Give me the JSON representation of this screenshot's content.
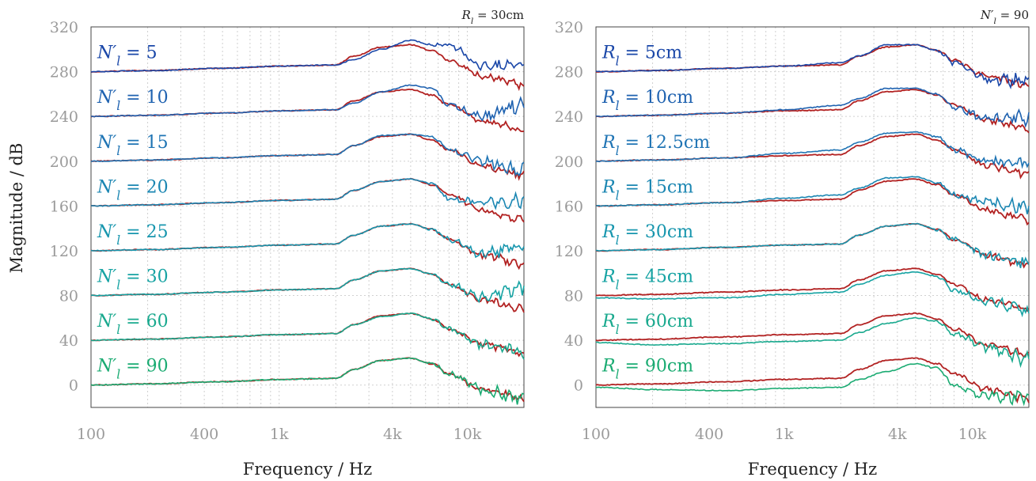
{
  "figure": {
    "ylabel": "Magnitude / dB",
    "colors": {
      "measured": "#b22222"
    }
  },
  "chart_data": [
    {
      "type": "line",
      "corner_label": "R_l = 30cm",
      "xlabel": "Frequency / Hz",
      "ylabel": "Magnitude / dB",
      "xscale": "log",
      "xlim": [
        100,
        20000
      ],
      "ylim": [
        -20,
        320
      ],
      "xticks": [
        100,
        400,
        1000,
        4000,
        10000
      ],
      "xticklabels": [
        "100",
        "400",
        "1k",
        "4k",
        "10k"
      ],
      "yticks": [
        0,
        40,
        80,
        120,
        160,
        200,
        240,
        280,
        320
      ],
      "grid": true,
      "curve_points_hz": [
        100,
        200,
        500,
        1000,
        2000,
        2500,
        3500,
        5000,
        6500,
        8000,
        12000,
        20000
      ],
      "series": [
        {
          "name": "N'_l = 5",
          "color": "#1a47a8",
          "offset": 280,
          "measured": [
            0,
            1,
            3,
            5,
            6,
            14,
            22,
            24,
            19,
            10,
            -4,
            -12
          ],
          "simulated": [
            0,
            1,
            3,
            5,
            6,
            11,
            20,
            28,
            24,
            24,
            5,
            5
          ]
        },
        {
          "name": "N'_l = 10",
          "color": "#1f62b0",
          "offset": 240,
          "measured": [
            0,
            1,
            3,
            5,
            6,
            14,
            22,
            24,
            19,
            10,
            -4,
            -12
          ],
          "simulated": [
            0,
            1,
            3,
            5,
            6,
            12,
            22,
            28,
            25,
            10,
            0,
            10
          ]
        },
        {
          "name": "N'_l = 15",
          "color": "#1f74b4",
          "offset": 200,
          "measured": [
            0,
            1,
            3,
            5,
            6,
            14,
            22,
            24,
            19,
            10,
            -4,
            -12
          ],
          "simulated": [
            0,
            1,
            3,
            5,
            6,
            14,
            23,
            24,
            22,
            10,
            0,
            -8
          ]
        },
        {
          "name": "N'_l = 20",
          "color": "#1a86b2",
          "offset": 160,
          "measured": [
            0,
            1,
            3,
            5,
            6,
            14,
            22,
            24,
            19,
            10,
            -4,
            -12
          ],
          "simulated": [
            0,
            1,
            3,
            5,
            6,
            14,
            22,
            24,
            20,
            6,
            3,
            5
          ]
        },
        {
          "name": "N'_l = 25",
          "color": "#1796ae",
          "offset": 120,
          "measured": [
            0,
            1,
            3,
            5,
            6,
            14,
            22,
            24,
            19,
            10,
            -4,
            -12
          ],
          "simulated": [
            0,
            1,
            3,
            5,
            6,
            14,
            22,
            24,
            19,
            10,
            -2,
            5
          ]
        },
        {
          "name": "N'_l = 30",
          "color": "#16a3a3",
          "offset": 80,
          "measured": [
            0,
            1,
            3,
            5,
            6,
            14,
            22,
            24,
            19,
            10,
            -4,
            -12
          ],
          "simulated": [
            0,
            1,
            3,
            5,
            6,
            14,
            22,
            24,
            19,
            10,
            -2,
            7
          ]
        },
        {
          "name": "N'_l = 60",
          "color": "#19a98e",
          "offset": 40,
          "measured": [
            0,
            1,
            3,
            5,
            6,
            14,
            22,
            24,
            19,
            10,
            -4,
            -12
          ],
          "simulated": [
            0,
            1,
            3,
            5,
            6,
            14,
            21,
            24,
            19,
            10,
            -4,
            -10
          ]
        },
        {
          "name": "N'_l = 90",
          "color": "#1aab72",
          "offset": 0,
          "measured": [
            0,
            1,
            3,
            5,
            6,
            14,
            22,
            24,
            19,
            10,
            -4,
            -12
          ],
          "simulated": [
            0,
            1,
            3,
            5,
            6,
            14,
            22,
            24,
            19,
            10,
            -4,
            -12
          ]
        }
      ]
    },
    {
      "type": "line",
      "corner_label": "N'_l = 90",
      "xlabel": "Frequency / Hz",
      "xscale": "log",
      "xlim": [
        100,
        20000
      ],
      "ylim": [
        -20,
        320
      ],
      "xticks": [
        100,
        400,
        1000,
        4000,
        10000
      ],
      "xticklabels": [
        "100",
        "400",
        "1k",
        "4k",
        "10k"
      ],
      "yticks": [
        0,
        40,
        80,
        120,
        160,
        200,
        240,
        280,
        320
      ],
      "grid": true,
      "curve_points_hz": [
        100,
        200,
        500,
        1000,
        2000,
        2500,
        3500,
        5000,
        6500,
        8000,
        12000,
        20000
      ],
      "series": [
        {
          "name": "R_l = 5cm",
          "color": "#1a47a8",
          "offset": 280,
          "measured": [
            0,
            1,
            3,
            5,
            6,
            14,
            22,
            24,
            19,
            10,
            -4,
            -12
          ],
          "simulated": [
            0,
            1,
            3,
            5,
            8,
            14,
            24,
            24,
            19,
            8,
            -6,
            -8
          ]
        },
        {
          "name": "R_l = 10cm",
          "color": "#1f62b0",
          "offset": 240,
          "measured": [
            0,
            1,
            3,
            5,
            6,
            14,
            22,
            24,
            19,
            10,
            -4,
            -12
          ],
          "simulated": [
            0,
            1,
            3,
            6,
            10,
            16,
            25,
            25,
            20,
            8,
            -2,
            -2
          ]
        },
        {
          "name": "R_l = 12.5cm",
          "color": "#1f74b4",
          "offset": 200,
          "measured": [
            0,
            1,
            3,
            5,
            6,
            14,
            22,
            24,
            19,
            10,
            -4,
            -12
          ],
          "simulated": [
            0,
            1,
            3,
            7,
            10,
            17,
            25,
            26,
            22,
            10,
            0,
            -2
          ]
        },
        {
          "name": "R_l = 15cm",
          "color": "#1a86b2",
          "offset": 160,
          "measured": [
            0,
            1,
            3,
            5,
            6,
            14,
            22,
            24,
            19,
            10,
            -4,
            -12
          ],
          "simulated": [
            0,
            1,
            3,
            7,
            10,
            16,
            25,
            26,
            21,
            10,
            3,
            0
          ]
        },
        {
          "name": "R_l = 30cm",
          "color": "#1796ae",
          "offset": 120,
          "measured": [
            0,
            1,
            3,
            5,
            6,
            14,
            22,
            24,
            19,
            10,
            -4,
            -12
          ],
          "simulated": [
            0,
            1,
            3,
            5,
            6,
            14,
            22,
            24,
            19,
            10,
            -4,
            -12
          ]
        },
        {
          "name": "R_l = 45cm",
          "color": "#16a3a3",
          "offset": 80,
          "measured": [
            0,
            1,
            3,
            5,
            6,
            14,
            22,
            24,
            19,
            10,
            -4,
            -12
          ],
          "simulated": [
            -2,
            -3,
            -2,
            1,
            3,
            10,
            18,
            21,
            17,
            5,
            -6,
            -14
          ]
        },
        {
          "name": "R_l = 60cm",
          "color": "#19a98e",
          "offset": 40,
          "measured": [
            0,
            1,
            3,
            5,
            6,
            14,
            22,
            24,
            19,
            10,
            -4,
            -12
          ],
          "simulated": [
            -2,
            -4,
            -3,
            -1,
            0,
            7,
            15,
            20,
            17,
            5,
            -6,
            -18
          ]
        },
        {
          "name": "R_l = 90cm",
          "color": "#1aab72",
          "offset": 0,
          "measured": [
            0,
            1,
            3,
            5,
            6,
            14,
            22,
            24,
            19,
            10,
            -4,
            -12
          ],
          "simulated": [
            -2,
            -4,
            -5,
            -3,
            -2,
            5,
            12,
            19,
            15,
            0,
            -10,
            -12
          ]
        }
      ]
    }
  ]
}
